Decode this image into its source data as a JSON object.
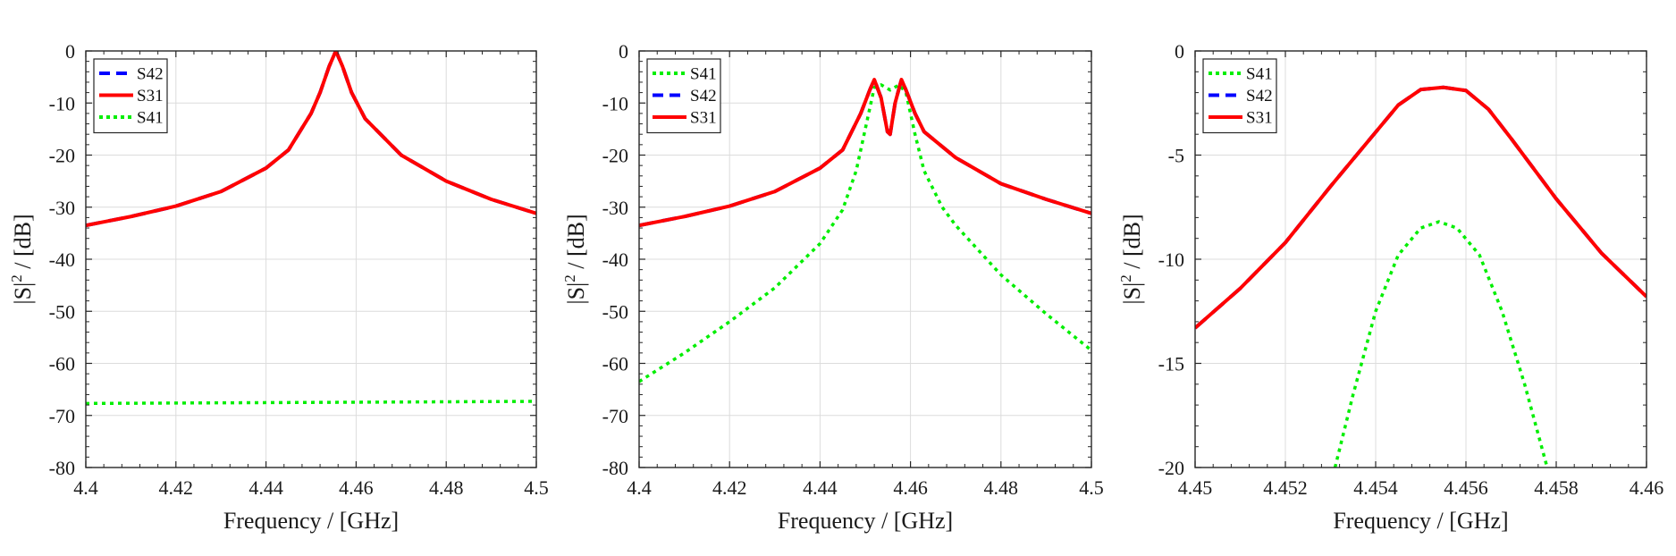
{
  "chart_data": [
    {
      "type": "line",
      "title": "",
      "xlabel": "Frequency / [GHz]",
      "ylabel_base": "|S|",
      "ylabel_exp": "2",
      "ylabel_unit": " / [dB]",
      "xlim": [
        4.4,
        4.5
      ],
      "ylim": [
        -80,
        0
      ],
      "xticks": [
        4.4,
        4.42,
        4.44,
        4.46,
        4.48,
        4.5
      ],
      "xtick_labels": [
        "4.4",
        "4.42",
        "4.44",
        "4.46",
        "4.48",
        "4.5"
      ],
      "yticks": [
        0,
        -10,
        -20,
        -30,
        -40,
        -50,
        -60,
        -70,
        -80
      ],
      "ytick_labels": [
        "0",
        "-10",
        "-20",
        "-30",
        "-40",
        "-50",
        "-60",
        "-70",
        "-80"
      ],
      "grid": true,
      "legend_position": "top-left",
      "series": [
        {
          "name": "S42",
          "color": "#0000ff",
          "style": "dashed",
          "x": [
            4.4,
            4.41,
            4.42,
            4.43,
            4.44,
            4.445,
            4.45,
            4.452,
            4.454,
            4.4555,
            4.457,
            4.459,
            4.462,
            4.47,
            4.48,
            4.49,
            4.5
          ],
          "y": [
            -33.5,
            -31.8,
            -29.8,
            -27,
            -22.5,
            -19,
            -12,
            -8,
            -3,
            0,
            -3,
            -8,
            -13,
            -20,
            -25,
            -28.5,
            -31.2
          ]
        },
        {
          "name": "S31",
          "color": "#ff0000",
          "style": "solid",
          "x": [
            4.4,
            4.41,
            4.42,
            4.43,
            4.44,
            4.445,
            4.45,
            4.452,
            4.454,
            4.4555,
            4.457,
            4.459,
            4.462,
            4.47,
            4.48,
            4.49,
            4.5
          ],
          "y": [
            -33.5,
            -31.8,
            -29.8,
            -27,
            -22.5,
            -19,
            -12,
            -8,
            -3,
            0,
            -3,
            -8,
            -13,
            -20,
            -25,
            -28.5,
            -31.2
          ]
        },
        {
          "name": "S41",
          "color": "#00ee00",
          "style": "dotted",
          "x": [
            4.4,
            4.45,
            4.5
          ],
          "y": [
            -67.7,
            -67.5,
            -67.3
          ]
        }
      ],
      "legend_order": [
        0,
        1,
        2
      ]
    },
    {
      "type": "line",
      "title": "",
      "xlabel": "Frequency / [GHz]",
      "ylabel_base": "|S|",
      "ylabel_exp": "2",
      "ylabel_unit": " / [dB]",
      "xlim": [
        4.4,
        4.5
      ],
      "ylim": [
        -80,
        0
      ],
      "xticks": [
        4.4,
        4.42,
        4.44,
        4.46,
        4.48,
        4.5
      ],
      "xtick_labels": [
        "4.4",
        "4.42",
        "4.44",
        "4.46",
        "4.48",
        "4.5"
      ],
      "yticks": [
        0,
        -10,
        -20,
        -30,
        -40,
        -50,
        -60,
        -70,
        -80
      ],
      "ytick_labels": [
        "0",
        "-10",
        "-20",
        "-30",
        "-40",
        "-50",
        "-60",
        "-70",
        "-80"
      ],
      "grid": true,
      "legend_position": "top-left",
      "series": [
        {
          "name": "S41",
          "color": "#00ee00",
          "style": "dotted",
          "x": [
            4.4,
            4.41,
            4.42,
            4.43,
            4.44,
            4.445,
            4.448,
            4.45,
            4.452,
            4.4535,
            4.4555,
            4.4575,
            4.459,
            4.461,
            4.463,
            4.467,
            4.47,
            4.48,
            4.49,
            4.5
          ],
          "y": [
            -63.5,
            -58,
            -52,
            -45.5,
            -37,
            -30.5,
            -23,
            -15,
            -7,
            -6.5,
            -7.5,
            -6.5,
            -8,
            -16,
            -23,
            -30,
            -33.5,
            -43,
            -50.5,
            -57.5
          ]
        },
        {
          "name": "S42",
          "color": "#0000ff",
          "style": "dashed",
          "x": [
            4.4,
            4.41,
            4.42,
            4.43,
            4.44,
            4.445,
            4.449,
            4.451,
            4.452,
            4.4535,
            4.4549,
            4.4555,
            4.4566,
            4.458,
            4.459,
            4.461,
            4.463,
            4.47,
            4.48,
            4.49,
            4.5
          ],
          "y": [
            -33.5,
            -31.8,
            -29.8,
            -27,
            -22.5,
            -19,
            -12,
            -7.5,
            -5.5,
            -9,
            -15.5,
            -16,
            -10,
            -5.5,
            -7.5,
            -12,
            -15.5,
            -20.5,
            -25.5,
            -28.5,
            -31.2
          ]
        },
        {
          "name": "S31",
          "color": "#ff0000",
          "style": "solid",
          "x": [
            4.4,
            4.41,
            4.42,
            4.43,
            4.44,
            4.445,
            4.449,
            4.451,
            4.452,
            4.4535,
            4.4549,
            4.4555,
            4.4566,
            4.458,
            4.459,
            4.461,
            4.463,
            4.47,
            4.48,
            4.49,
            4.5
          ],
          "y": [
            -33.5,
            -31.8,
            -29.8,
            -27,
            -22.5,
            -19,
            -12,
            -7.5,
            -5.5,
            -9,
            -15.5,
            -16,
            -10,
            -5.5,
            -7.5,
            -12,
            -15.5,
            -20.5,
            -25.5,
            -28.5,
            -31.2
          ]
        }
      ],
      "legend_order": [
        0,
        1,
        2
      ]
    },
    {
      "type": "line",
      "title": "",
      "xlabel": "Frequency / [GHz]",
      "ylabel_base": "|S|",
      "ylabel_exp": "2",
      "ylabel_unit": " / [dB]",
      "xlim": [
        4.45,
        4.46
      ],
      "ylim": [
        -20,
        0
      ],
      "xticks": [
        4.45,
        4.452,
        4.454,
        4.456,
        4.458,
        4.46
      ],
      "xtick_labels": [
        "4.45",
        "4.452",
        "4.454",
        "4.456",
        "4.458",
        "4.46"
      ],
      "yticks": [
        0,
        -5,
        -10,
        -15,
        -20
      ],
      "ytick_labels": [
        "0",
        "-5",
        "-10",
        "-15",
        "-20"
      ],
      "grid": true,
      "legend_position": "top-left",
      "series": [
        {
          "name": "S41",
          "color": "#00ee00",
          "style": "dotted",
          "x": [
            4.4531,
            4.4535,
            4.454,
            4.4545,
            4.455,
            4.4554,
            4.4558,
            4.4563,
            4.4568,
            4.4573,
            4.4578
          ],
          "y": [
            -20,
            -16.5,
            -12.5,
            -9.8,
            -8.5,
            -8.2,
            -8.5,
            -9.8,
            -12.5,
            -16,
            -20
          ]
        },
        {
          "name": "S42",
          "color": "#0000ff",
          "style": "dashed",
          "x": [
            4.45,
            4.451,
            4.452,
            4.453,
            4.454,
            4.4545,
            4.455,
            4.4555,
            4.456,
            4.4565,
            4.457,
            4.458,
            4.459,
            4.46
          ],
          "y": [
            -13.3,
            -11.4,
            -9.2,
            -6.5,
            -3.9,
            -2.6,
            -1.85,
            -1.75,
            -1.9,
            -2.8,
            -4.2,
            -7.1,
            -9.7,
            -11.8
          ]
        },
        {
          "name": "S31",
          "color": "#ff0000",
          "style": "solid",
          "x": [
            4.45,
            4.451,
            4.452,
            4.453,
            4.454,
            4.4545,
            4.455,
            4.4555,
            4.456,
            4.4565,
            4.457,
            4.458,
            4.459,
            4.46
          ],
          "y": [
            -13.3,
            -11.4,
            -9.2,
            -6.5,
            -3.9,
            -2.6,
            -1.85,
            -1.75,
            -1.9,
            -2.8,
            -4.2,
            -7.1,
            -9.7,
            -11.8
          ]
        }
      ],
      "legend_order": [
        0,
        1,
        2
      ]
    }
  ]
}
